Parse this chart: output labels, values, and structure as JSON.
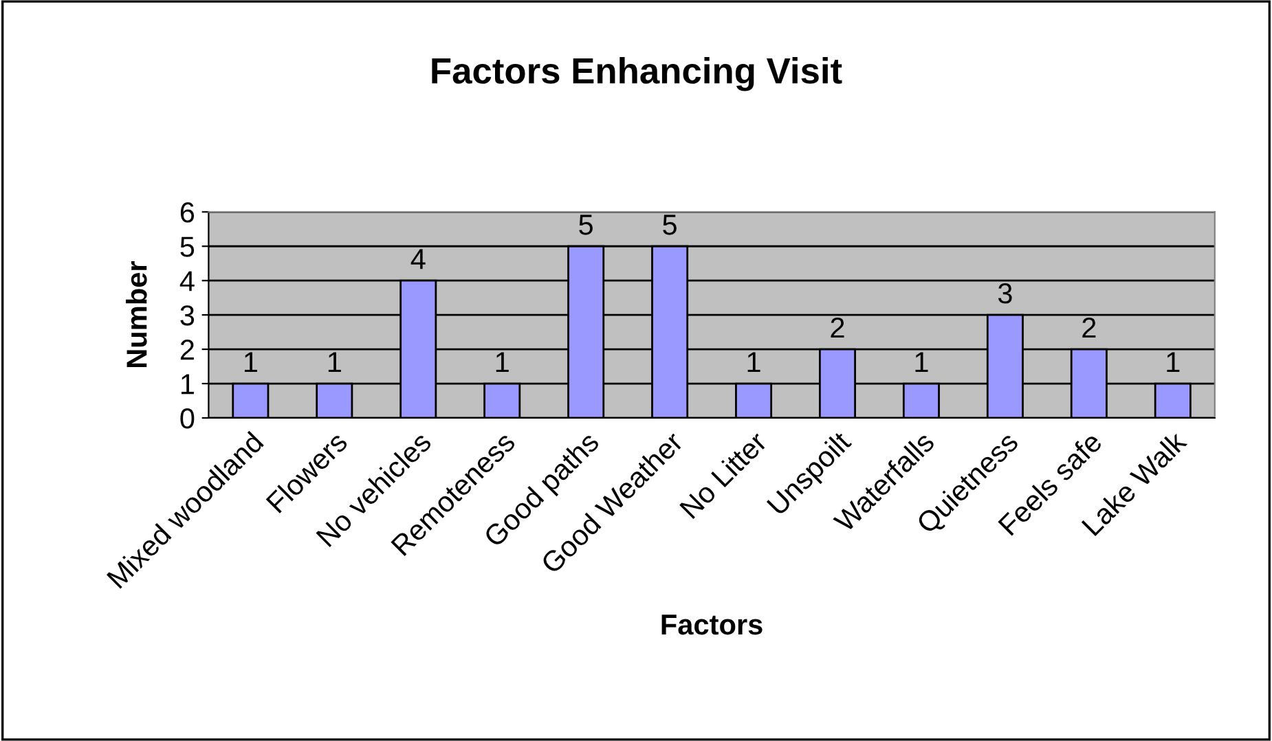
{
  "chart_data": {
    "type": "bar",
    "title": "Factors Enhancing Visit",
    "xlabel": "Factors",
    "ylabel": "Number",
    "categories": [
      "Mixed woodland",
      "Flowers",
      "No vehicles",
      "Remoteness",
      "Good paths",
      "Good Weather",
      "No Litter",
      "Unspoilt",
      "Waterfalls",
      "Quietness",
      "Feels safe",
      "Lake Walk"
    ],
    "values": [
      1,
      1,
      4,
      1,
      5,
      5,
      1,
      2,
      1,
      3,
      2,
      1
    ],
    "color": "#9999ff",
    "ylim": [
      0,
      6
    ],
    "yticks": [
      0,
      1,
      2,
      3,
      4,
      5,
      6
    ],
    "grid": "y",
    "data_labels": true,
    "legend": false
  }
}
